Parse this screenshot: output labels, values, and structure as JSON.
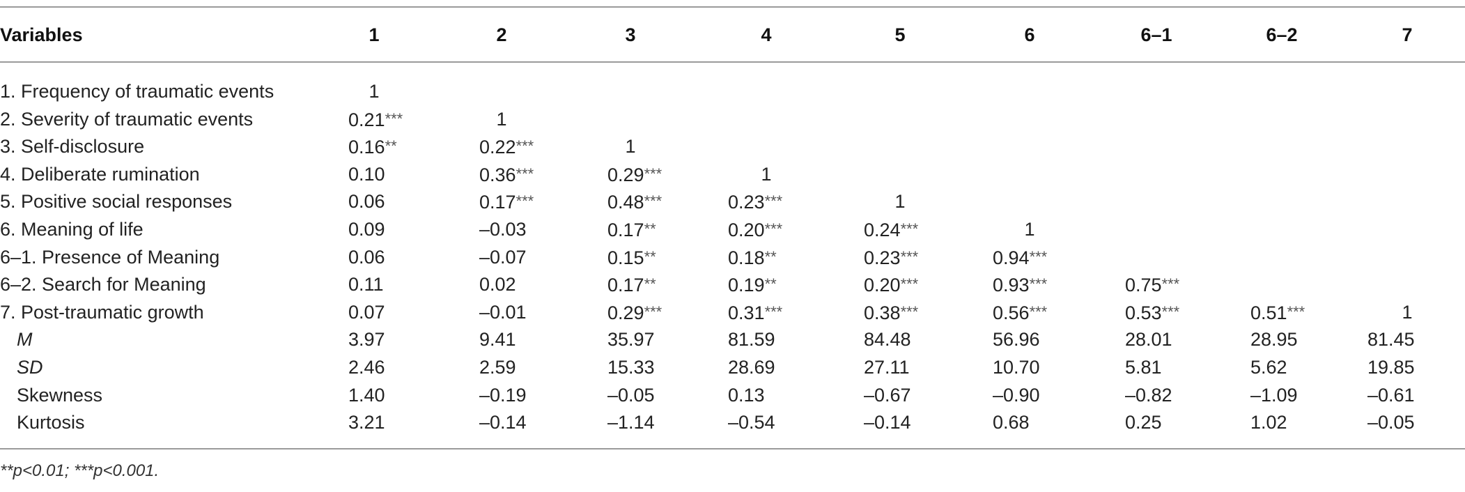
{
  "table": {
    "headers": [
      "Variables",
      "1",
      "2",
      "3",
      "4",
      "5",
      "6",
      "6–1",
      "6–2",
      "7"
    ],
    "rows": [
      {
        "label": "1. Frequency of traumatic events",
        "indent": false,
        "italic": false,
        "cells": [
          {
            "v": "1",
            "s": ""
          }
        ]
      },
      {
        "label": "2. Severity of traumatic events",
        "indent": false,
        "italic": false,
        "cells": [
          {
            "v": "0.21",
            "s": "***"
          },
          {
            "v": "1",
            "s": ""
          }
        ]
      },
      {
        "label": "3. Self-disclosure",
        "indent": false,
        "italic": false,
        "cells": [
          {
            "v": "0.16",
            "s": "**"
          },
          {
            "v": "0.22",
            "s": "***"
          },
          {
            "v": "1",
            "s": ""
          }
        ]
      },
      {
        "label": "4. Deliberate rumination",
        "indent": false,
        "italic": false,
        "cells": [
          {
            "v": "0.10",
            "s": ""
          },
          {
            "v": "0.36",
            "s": "***"
          },
          {
            "v": "0.29",
            "s": "***"
          },
          {
            "v": "1",
            "s": ""
          }
        ]
      },
      {
        "label": "5. Positive social responses",
        "indent": false,
        "italic": false,
        "cells": [
          {
            "v": "0.06",
            "s": ""
          },
          {
            "v": "0.17",
            "s": "***"
          },
          {
            "v": "0.48",
            "s": "***"
          },
          {
            "v": "0.23",
            "s": "***"
          },
          {
            "v": "1",
            "s": ""
          }
        ]
      },
      {
        "label": "6. Meaning of life",
        "indent": false,
        "italic": false,
        "cells": [
          {
            "v": "0.09",
            "s": ""
          },
          {
            "v": "–0.03",
            "s": ""
          },
          {
            "v": "0.17",
            "s": "**"
          },
          {
            "v": "0.20",
            "s": "***"
          },
          {
            "v": "0.24",
            "s": "***"
          },
          {
            "v": "1",
            "s": ""
          }
        ]
      },
      {
        "label": "6–1. Presence of Meaning",
        "indent": false,
        "italic": false,
        "cells": [
          {
            "v": "0.06",
            "s": ""
          },
          {
            "v": "–0.07",
            "s": ""
          },
          {
            "v": "0.15",
            "s": "**"
          },
          {
            "v": "0.18",
            "s": "**"
          },
          {
            "v": "0.23",
            "s": "***"
          },
          {
            "v": "0.94",
            "s": "***"
          }
        ]
      },
      {
        "label": "6–2. Search for Meaning",
        "indent": false,
        "italic": false,
        "cells": [
          {
            "v": "0.11",
            "s": ""
          },
          {
            "v": "0.02",
            "s": ""
          },
          {
            "v": "0.17",
            "s": "**"
          },
          {
            "v": "0.19",
            "s": "**"
          },
          {
            "v": "0.20",
            "s": "***"
          },
          {
            "v": "0.93",
            "s": "***"
          },
          {
            "v": "0.75",
            "s": "***"
          }
        ]
      },
      {
        "label": "7. Post-traumatic growth",
        "indent": false,
        "italic": false,
        "cells": [
          {
            "v": "0.07",
            "s": ""
          },
          {
            "v": "–0.01",
            "s": ""
          },
          {
            "v": "0.29",
            "s": "***"
          },
          {
            "v": "0.31",
            "s": "***"
          },
          {
            "v": "0.38",
            "s": "***"
          },
          {
            "v": "0.56",
            "s": "***"
          },
          {
            "v": "0.53",
            "s": "***"
          },
          {
            "v": "0.51",
            "s": "***"
          },
          {
            "v": "1",
            "s": ""
          }
        ]
      },
      {
        "label": "M",
        "indent": true,
        "italic": true,
        "cells": [
          {
            "v": "3.97",
            "s": ""
          },
          {
            "v": "9.41",
            "s": ""
          },
          {
            "v": "35.97",
            "s": ""
          },
          {
            "v": "81.59",
            "s": ""
          },
          {
            "v": "84.48",
            "s": ""
          },
          {
            "v": "56.96",
            "s": ""
          },
          {
            "v": "28.01",
            "s": ""
          },
          {
            "v": "28.95",
            "s": ""
          },
          {
            "v": "81.45",
            "s": ""
          }
        ]
      },
      {
        "label": "SD",
        "indent": true,
        "italic": true,
        "cells": [
          {
            "v": "2.46",
            "s": ""
          },
          {
            "v": "2.59",
            "s": ""
          },
          {
            "v": "15.33",
            "s": ""
          },
          {
            "v": "28.69",
            "s": ""
          },
          {
            "v": "27.11",
            "s": ""
          },
          {
            "v": "10.70",
            "s": ""
          },
          {
            "v": "5.81",
            "s": ""
          },
          {
            "v": "5.62",
            "s": ""
          },
          {
            "v": "19.85",
            "s": ""
          }
        ]
      },
      {
        "label": "Skewness",
        "indent": true,
        "italic": false,
        "cells": [
          {
            "v": "1.40",
            "s": ""
          },
          {
            "v": "–0.19",
            "s": ""
          },
          {
            "v": "–0.05",
            "s": ""
          },
          {
            "v": "0.13",
            "s": ""
          },
          {
            "v": "–0.67",
            "s": ""
          },
          {
            "v": "–0.90",
            "s": ""
          },
          {
            "v": "–0.82",
            "s": ""
          },
          {
            "v": "–1.09",
            "s": ""
          },
          {
            "v": "–0.61",
            "s": ""
          }
        ]
      },
      {
        "label": "Kurtosis",
        "indent": true,
        "italic": false,
        "cells": [
          {
            "v": "3.21",
            "s": ""
          },
          {
            "v": "–0.14",
            "s": ""
          },
          {
            "v": "–1.14",
            "s": ""
          },
          {
            "v": "–0.54",
            "s": ""
          },
          {
            "v": "–0.14",
            "s": ""
          },
          {
            "v": "0.68",
            "s": ""
          },
          {
            "v": "0.25",
            "s": ""
          },
          {
            "v": "1.02",
            "s": ""
          },
          {
            "v": "–0.05",
            "s": ""
          }
        ]
      }
    ]
  },
  "footnote": "**p<0.01; ***p<0.001."
}
